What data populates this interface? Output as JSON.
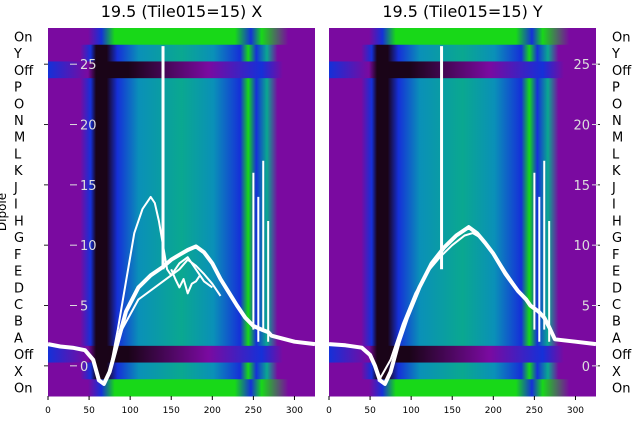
{
  "colors": {
    "purple": "#7a0aa0",
    "blue": "#1530d8",
    "cyan": "#0a90b8",
    "teal": "#0aa890",
    "green": "#18d818",
    "dark": "#1a0418",
    "sky": "#2a90e0",
    "trace": "#ffffff"
  },
  "chart_data": [
    {
      "type": "heatmap",
      "title": "19.5 (Tile015=15) X",
      "ylabel": "Dipole",
      "row_labels": [
        "On",
        "Y",
        "Off",
        "P",
        "O",
        "N",
        "M",
        "L",
        "K",
        "J",
        "I",
        "H",
        "G",
        "F",
        "E",
        "D",
        "C",
        "B",
        "A",
        "Off",
        "X",
        "On"
      ],
      "xlim": [
        0,
        325
      ],
      "xticks": [
        0,
        50,
        100,
        150,
        200,
        250,
        300
      ],
      "overlay_ylim": [
        -2.5,
        28
      ],
      "overlay_yticks": [
        0,
        5,
        10,
        15,
        20,
        25
      ],
      "series": [
        {
          "name": "",
          "x": [
            0,
            15,
            30,
            45,
            55,
            62,
            68,
            75,
            85,
            95,
            110,
            125,
            140,
            150,
            160,
            170,
            180,
            190,
            200,
            210,
            220,
            230,
            240,
            250,
            260,
            268,
            272,
            300,
            325
          ],
          "y": [
            1.8,
            1.6,
            1.5,
            1.3,
            0.5,
            -1.2,
            -1.5,
            -0.5,
            2,
            4.5,
            6.5,
            7.5,
            8.2,
            8.8,
            9.2,
            9.6,
            9.9,
            9.4,
            8.5,
            7.2,
            6.1,
            5,
            4,
            3.3,
            3,
            2.8,
            2.5,
            2,
            1.8
          ]
        },
        {
          "name": "",
          "x": [
            75,
            85,
            95,
            105,
            115,
            125,
            130,
            135,
            140,
            145,
            150,
            160,
            170,
            180,
            190,
            200
          ],
          "y": [
            -0.5,
            3,
            7,
            11,
            13,
            14,
            13.5,
            12,
            10,
            8,
            7.5,
            8.5,
            9,
            8,
            7,
            6.5
          ]
        },
        {
          "name": "",
          "x": [
            75,
            90,
            110,
            130,
            150,
            160,
            170,
            180,
            190,
            200,
            210
          ],
          "y": [
            -0.5,
            3,
            5.5,
            6.5,
            7.5,
            8,
            8.8,
            8.3,
            7.6,
            6.8,
            5.8
          ]
        },
        {
          "name": "",
          "x": [
            150,
            155,
            160,
            165,
            170,
            175,
            180,
            185
          ],
          "y": [
            8,
            7.2,
            6.5,
            7.2,
            6,
            6.8,
            7,
            7.5
          ]
        }
      ]
    },
    {
      "type": "heatmap",
      "title": "19.5 (Tile015=15) Y",
      "row_labels": [
        "On",
        "Y",
        "Off",
        "P",
        "O",
        "N",
        "M",
        "L",
        "K",
        "J",
        "I",
        "H",
        "G",
        "F",
        "E",
        "D",
        "C",
        "B",
        "A",
        "Off",
        "X",
        "On"
      ],
      "xlim": [
        0,
        325
      ],
      "xticks": [
        0,
        50,
        100,
        150,
        200,
        250,
        300
      ],
      "overlay_ylim": [
        -2.5,
        28
      ],
      "overlay_yticks": [
        0,
        5,
        10,
        15,
        20,
        25
      ],
      "series": [
        {
          "name": "",
          "x": [
            0,
            20,
            40,
            50,
            56,
            62,
            68,
            75,
            85,
            95,
            110,
            125,
            140,
            155,
            170,
            180,
            190,
            200,
            215,
            230,
            240,
            245,
            255,
            262,
            268,
            275,
            300,
            325
          ],
          "y": [
            1.8,
            1.7,
            1.5,
            0.9,
            0,
            -1.2,
            -1.5,
            -0.5,
            2,
            4,
            6.5,
            8.5,
            9.8,
            10.8,
            11.5,
            11,
            10.2,
            9.3,
            7.6,
            6.2,
            5.5,
            5,
            4.5,
            4,
            3.2,
            2.2,
            2,
            1.8
          ]
        },
        {
          "name": "",
          "x": [
            60,
            75,
            90,
            105,
            120,
            135,
            150,
            165,
            175,
            185,
            200,
            215,
            230,
            240
          ],
          "y": [
            -1.3,
            0.5,
            3.5,
            6,
            7.8,
            9,
            10,
            10.8,
            11,
            10.6,
            9.4,
            7.8,
            6.3,
            5.5
          ]
        }
      ]
    }
  ]
}
